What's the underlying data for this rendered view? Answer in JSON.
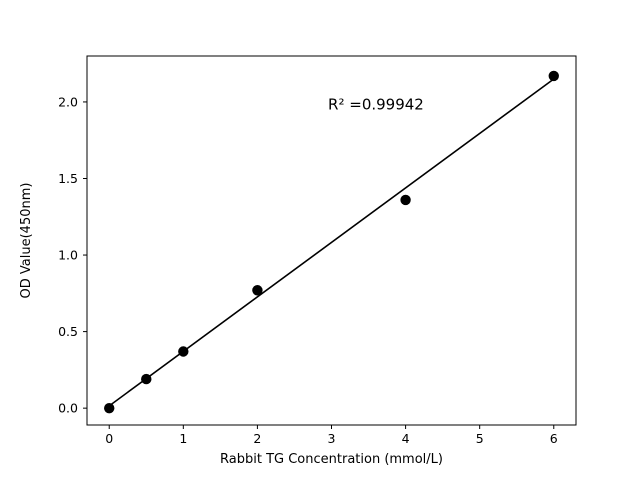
{
  "chart_data": {
    "type": "scatter",
    "title": "",
    "xlabel": "Rabbit TG Concentration (mmol/L)",
    "ylabel": "OD Value(450nm)",
    "x": [
      0,
      0.5,
      1,
      2,
      4,
      6
    ],
    "y": [
      0.0,
      0.19,
      0.37,
      0.77,
      1.36,
      2.17
    ],
    "fit_line": {
      "x": [
        0,
        6
      ],
      "y": [
        0.015,
        2.15
      ]
    },
    "annotation": {
      "text": "R² =0.99942",
      "x": 3.6,
      "y": 1.95
    },
    "xlim": [
      -0.3,
      6.3
    ],
    "ylim": [
      -0.11,
      2.3
    ],
    "xticks": [
      0,
      1,
      2,
      3,
      4,
      5,
      6
    ],
    "xtick_labels": [
      "0",
      "1",
      "2",
      "3",
      "4",
      "5",
      "6"
    ],
    "yticks": [
      0.0,
      0.5,
      1.0,
      1.5,
      2.0
    ],
    "ytick_labels": [
      "0.0",
      "0.5",
      "1.0",
      "1.5",
      "2.0"
    ],
    "grid": false,
    "legend": null,
    "marker_color": "#000000",
    "line_color": "#000000",
    "background_color": "#ffffff",
    "axis_color": "#000000"
  }
}
